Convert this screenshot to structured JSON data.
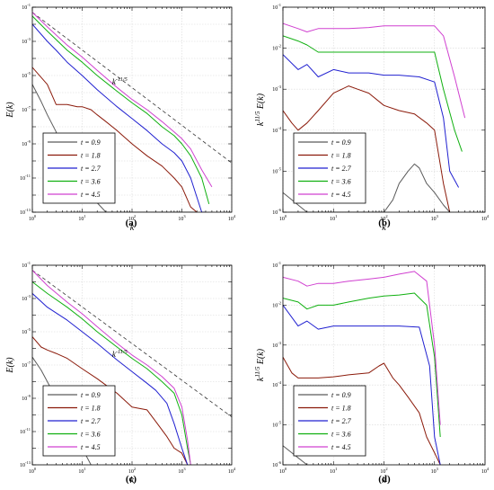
{
  "chart_data": [
    {
      "panel_label": "(a)",
      "type": "line",
      "xlabel": "k",
      "ylabel": "E(k)",
      "xscale": "log",
      "yscale": "log",
      "xlim": [
        1,
        10000
      ],
      "ylim": [
        1e-13,
        0.1
      ],
      "x_tick_labels": [
        "10^0",
        "10^1",
        "10^2",
        "10^3",
        "10^4"
      ],
      "y_tick_labels": [
        "10^-13",
        "10^-11",
        "10^-9",
        "10^-7",
        "10^-5",
        "10^-3",
        "10^-1"
      ],
      "grid": true,
      "legend_position": "bottom-left",
      "annotation": {
        "text": "k^-11/5",
        "x": 40,
        "y": 3e-06
      },
      "reference_line": {
        "slope": -2.2,
        "x": [
          1,
          10000
        ],
        "y": [
          0.05,
          7.6e-11
        ]
      },
      "series": [
        {
          "name": "t = 0.9",
          "color": "#5a5a5a",
          "x": [
            1,
            1.5,
            2,
            3,
            4,
            6,
            10,
            30,
            60,
            100,
            200,
            400,
            1000,
            2000
          ],
          "y": [
            3e-06,
            3e-07,
            5e-08,
            5e-09,
            2e-10,
            3e-11,
            3e-12,
            1e-13,
            1e-13,
            1e-13,
            1e-13,
            1e-13,
            1e-13,
            1e-13
          ]
        },
        {
          "name": "t = 1.8",
          "color": "#8b1a0a",
          "x": [
            1,
            2,
            3,
            5,
            8,
            10,
            15,
            20,
            30,
            50,
            100,
            200,
            400,
            700,
            1000,
            1500,
            2000
          ],
          "y": [
            3e-05,
            3e-06,
            2e-07,
            2e-07,
            1.5e-07,
            1.5e-07,
            1e-07,
            5e-08,
            2e-08,
            6e-09,
            1e-09,
            2e-10,
            5e-11,
            1e-11,
            3e-12,
            2e-13,
            1e-13
          ]
        },
        {
          "name": "t = 2.7",
          "color": "#2020d0",
          "x": [
            1,
            2,
            3,
            5,
            10,
            20,
            50,
            100,
            200,
            400,
            700,
            1000,
            1500,
            2500,
            3000
          ],
          "y": [
            0.01,
            0.001,
            0.0003,
            6e-05,
            1e-05,
            1.5e-06,
            1.5e-07,
            3e-08,
            6e-09,
            1e-09,
            3e-10,
            1e-10,
            1e-11,
            1e-13,
            1e-13
          ]
        },
        {
          "name": "t = 3.6",
          "color": "#10b010",
          "x": [
            1,
            2,
            5,
            10,
            20,
            50,
            100,
            200,
            400,
            700,
            1000,
            1500,
            2500,
            3500
          ],
          "y": [
            0.03,
            0.004,
            0.0003,
            6e-05,
            1e-05,
            1.2e-06,
            2.5e-07,
            6e-08,
            1e-08,
            3e-09,
            1e-09,
            2e-10,
            1e-11,
            3e-13
          ]
        },
        {
          "name": "t = 4.5",
          "color": "#d040d0",
          "x": [
            1,
            2,
            5,
            10,
            20,
            50,
            100,
            200,
            400,
            700,
            1000,
            1500,
            2500,
            4000
          ],
          "y": [
            0.05,
            0.007,
            0.0006,
            0.00012,
            2e-05,
            2e-06,
            4e-07,
            1e-07,
            2e-08,
            5e-09,
            2e-09,
            5e-10,
            3e-11,
            3e-12
          ]
        }
      ]
    },
    {
      "panel_label": "(b)",
      "type": "line",
      "xlabel": "k",
      "ylabel": "k^11/5 E(k)",
      "xscale": "log",
      "yscale": "log",
      "xlim": [
        1,
        10000
      ],
      "ylim": [
        1e-06,
        0.1
      ],
      "x_tick_labels": [
        "10^0",
        "10^1",
        "10^2",
        "10^3",
        "10^4"
      ],
      "y_tick_labels": [
        "10^-6",
        "10^-5",
        "10^-4",
        "10^-3",
        "10^-2",
        "10^-1"
      ],
      "grid": true,
      "legend_position": "bottom-left",
      "series": [
        {
          "name": "t = 0.9",
          "color": "#5a5a5a",
          "x": [
            1,
            1.5,
            2,
            3,
            4,
            100,
            150,
            200,
            300,
            400,
            500,
            700,
            1000,
            1500,
            2000
          ],
          "y": [
            3e-06,
            2e-06,
            1.5e-06,
            1e-06,
            1e-06,
            1e-06,
            2e-06,
            5e-06,
            1e-05,
            1.5e-05,
            1.2e-05,
            5e-06,
            3e-06,
            1.5e-06,
            1e-06
          ]
        },
        {
          "name": "t = 1.8",
          "color": "#8b1a0a",
          "x": [
            1,
            1.5,
            2,
            3,
            5,
            10,
            20,
            30,
            50,
            100,
            200,
            400,
            700,
            1000,
            1500,
            2000
          ],
          "y": [
            0.0003,
            0.00015,
            0.0001,
            0.00015,
            0.0003,
            0.0008,
            0.0012,
            0.001,
            0.0008,
            0.0004,
            0.0003,
            0.00025,
            0.00015,
            0.0001,
            5e-06,
            1e-06
          ]
        },
        {
          "name": "t = 2.7",
          "color": "#2020d0",
          "x": [
            1,
            2,
            3,
            5,
            10,
            20,
            50,
            100,
            200,
            500,
            1000,
            1500,
            2000,
            3000
          ],
          "y": [
            0.007,
            0.003,
            0.004,
            0.002,
            0.003,
            0.0025,
            0.0025,
            0.0022,
            0.0022,
            0.002,
            0.0015,
            0.0002,
            1e-05,
            4e-06
          ]
        },
        {
          "name": "t = 3.6",
          "color": "#10b010",
          "x": [
            1,
            2,
            3,
            5,
            10,
            20,
            50,
            100,
            200,
            500,
            1000,
            1500,
            2500,
            3500
          ],
          "y": [
            0.02,
            0.015,
            0.012,
            0.008,
            0.008,
            0.008,
            0.008,
            0.008,
            0.008,
            0.008,
            0.008,
            0.001,
            0.0001,
            3e-05
          ]
        },
        {
          "name": "t = 4.5",
          "color": "#d040d0",
          "x": [
            1,
            2,
            3,
            5,
            10,
            20,
            50,
            100,
            200,
            500,
            1000,
            1500,
            2500,
            4000
          ],
          "y": [
            0.04,
            0.03,
            0.025,
            0.03,
            0.03,
            0.03,
            0.032,
            0.035,
            0.035,
            0.035,
            0.035,
            0.02,
            0.002,
            0.0002
          ]
        }
      ]
    },
    {
      "panel_label": "(c)",
      "type": "line",
      "xlabel": "k",
      "ylabel": "E(k)",
      "xscale": "log",
      "yscale": "log",
      "xlim": [
        1,
        10000
      ],
      "ylim": [
        1e-13,
        0.1
      ],
      "x_tick_labels": [
        "10^0",
        "10^1",
        "10^2",
        "10^3",
        "10^4"
      ],
      "y_tick_labels": [
        "10^-13",
        "10^-11",
        "10^-9",
        "10^-7",
        "10^-5",
        "10^-3",
        "10^-1"
      ],
      "grid": true,
      "legend_position": "bottom-left",
      "annotation": {
        "text": "k^-11/5",
        "x": 40,
        "y": 3e-07
      },
      "reference_line": {
        "slope": -2.2,
        "x": [
          1,
          10000
        ],
        "y": [
          0.05,
          7.6e-11
        ]
      },
      "series": [
        {
          "name": "t = 0.9",
          "color": "#5a5a5a",
          "x": [
            1,
            1.5,
            2,
            3,
            4,
            6,
            10,
            15
          ],
          "y": [
            3e-07,
            5e-08,
            1e-08,
            1e-09,
            2e-10,
            3e-11,
            1e-12,
            1e-13
          ]
        },
        {
          "name": "t = 1.8",
          "color": "#8b1a0a",
          "x": [
            1,
            1.5,
            2,
            3,
            5,
            10,
            20,
            50,
            100,
            200,
            300,
            500,
            700,
            1000,
            1300
          ],
          "y": [
            5e-06,
            1.2e-06,
            8e-07,
            5e-07,
            2.5e-07,
            6e-08,
            1.5e-08,
            2e-09,
            3e-10,
            2e-10,
            4e-11,
            5e-12,
            1e-12,
            5e-13,
            1e-13
          ]
        },
        {
          "name": "t = 2.7",
          "color": "#2020d0",
          "x": [
            1,
            2,
            5,
            10,
            20,
            50,
            100,
            200,
            300,
            500,
            700,
            1000,
            1300
          ],
          "y": [
            0.002,
            0.0003,
            5e-05,
            1e-05,
            2e-06,
            2e-07,
            4e-08,
            8e-09,
            3e-09,
            5e-10,
            3e-11,
            1e-12,
            1e-13
          ]
        },
        {
          "name": "t = 3.6",
          "color": "#10b010",
          "x": [
            1,
            2,
            5,
            10,
            20,
            50,
            100,
            200,
            400,
            700,
            1000,
            1300,
            1500
          ],
          "y": [
            0.01,
            0.002,
            0.0003,
            6e-05,
            1e-05,
            1.2e-06,
            2.5e-07,
            6e-08,
            1e-08,
            2e-09,
            1e-10,
            1e-12,
            1e-13
          ]
        },
        {
          "name": "t = 4.5",
          "color": "#d040d0",
          "x": [
            1,
            2,
            5,
            10,
            20,
            50,
            100,
            200,
            400,
            700,
            1000,
            1300,
            1500
          ],
          "y": [
            0.05,
            0.006,
            0.0006,
            0.00012,
            2e-05,
            2e-06,
            4e-07,
            1e-07,
            2e-08,
            4e-09,
            3e-10,
            3e-12,
            1e-13
          ]
        }
      ]
    },
    {
      "panel_label": "(d)",
      "type": "line",
      "xlabel": "k",
      "ylabel": "k^11/5 E(k)",
      "xscale": "log",
      "yscale": "log",
      "xlim": [
        1,
        10000
      ],
      "ylim": [
        1e-06,
        0.1
      ],
      "x_tick_labels": [
        "10^0",
        "10^1",
        "10^2",
        "10^3",
        "10^4"
      ],
      "y_tick_labels": [
        "10^-6",
        "10^-5",
        "10^-4",
        "10^-3",
        "10^-2",
        "10^-1"
      ],
      "grid": true,
      "legend_position": "bottom-left",
      "series": [
        {
          "name": "t = 0.9",
          "color": "#5a5a5a",
          "x": [
            1,
            1.5,
            2,
            2.5,
            3
          ],
          "y": [
            3e-06,
            2e-06,
            1.5e-06,
            1.2e-06,
            1e-06
          ]
        },
        {
          "name": "t = 1.8",
          "color": "#8b1a0a",
          "x": [
            1,
            1.5,
            2,
            5,
            10,
            20,
            50,
            80,
            100,
            150,
            200,
            300,
            500,
            700,
            1000,
            1300
          ],
          "y": [
            0.0005,
            0.0002,
            0.00015,
            0.00015,
            0.00016,
            0.00018,
            0.0002,
            0.0003,
            0.00035,
            0.00015,
            0.0001,
            5e-05,
            2e-05,
            5e-06,
            2e-06,
            1e-06
          ]
        },
        {
          "name": "t = 2.7",
          "color": "#2020d0",
          "x": [
            1,
            2,
            3,
            5,
            10,
            20,
            50,
            100,
            200,
            500,
            800,
            1000,
            1300
          ],
          "y": [
            0.01,
            0.003,
            0.004,
            0.0025,
            0.003,
            0.003,
            0.003,
            0.003,
            0.003,
            0.0028,
            0.0003,
            5e-06,
            1e-06
          ]
        },
        {
          "name": "t = 3.6",
          "color": "#10b010",
          "x": [
            1,
            2,
            3,
            5,
            10,
            20,
            50,
            100,
            200,
            400,
            700,
            1000,
            1300
          ],
          "y": [
            0.015,
            0.012,
            0.008,
            0.01,
            0.01,
            0.012,
            0.015,
            0.017,
            0.018,
            0.02,
            0.01,
            0.0005,
            5e-06
          ]
        },
        {
          "name": "t = 4.5",
          "color": "#d040d0",
          "x": [
            1,
            2,
            3,
            5,
            10,
            20,
            50,
            100,
            200,
            400,
            700,
            1000,
            1300
          ],
          "y": [
            0.05,
            0.04,
            0.03,
            0.035,
            0.035,
            0.04,
            0.045,
            0.05,
            0.06,
            0.07,
            0.04,
            0.001,
            1e-05
          ]
        }
      ]
    }
  ]
}
